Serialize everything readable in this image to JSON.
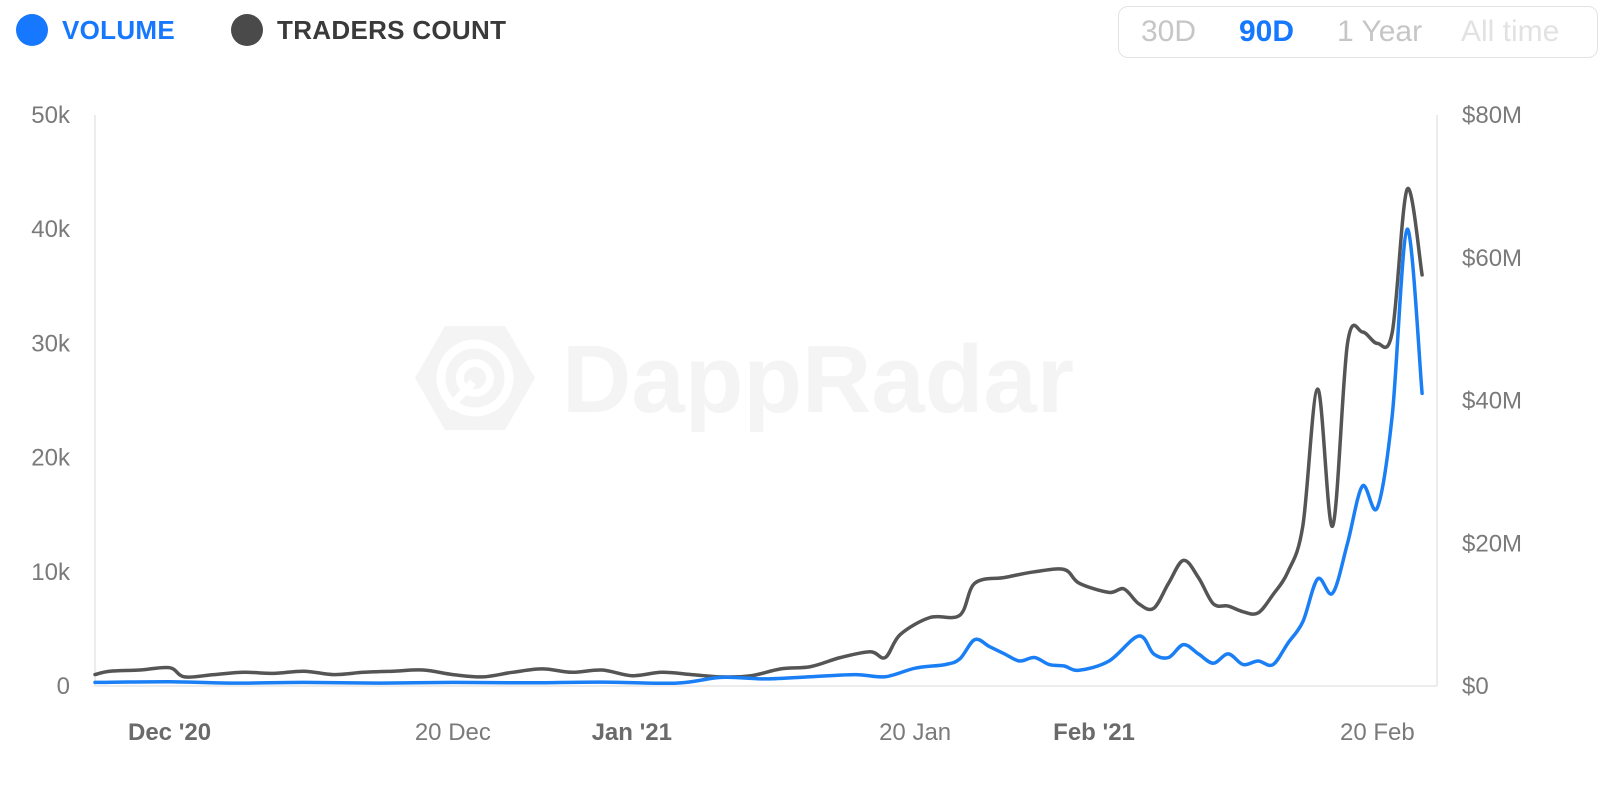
{
  "legend": [
    {
      "label": "VOLUME",
      "color": "#1677ff",
      "text_color": "#1677ff"
    },
    {
      "label": "TRADERS COUNT",
      "color": "#4a4a4a",
      "text_color": "#3a3a3a"
    }
  ],
  "range_selector": {
    "options": [
      "30D",
      "90D",
      "1 Year",
      "All time"
    ],
    "selected": "90D"
  },
  "watermark": "DappRadar",
  "chart_data": {
    "type": "line",
    "x_labels": [
      {
        "label": "Dec '20",
        "bold": true
      },
      {
        "label": "20 Dec",
        "bold": false
      },
      {
        "label": "Jan '21",
        "bold": true
      },
      {
        "label": "20 Jan",
        "bold": false
      },
      {
        "label": "Feb '21",
        "bold": true
      },
      {
        "label": "20 Feb",
        "bold": false
      }
    ],
    "y_left": {
      "ticks": [
        "0",
        "10k",
        "20k",
        "30k",
        "40k",
        "50k"
      ],
      "range": [
        0,
        50000
      ]
    },
    "y_right": {
      "ticks": [
        "$0",
        "$20M",
        "$40M",
        "$60M",
        "$80M"
      ],
      "range": [
        0,
        80000000
      ]
    },
    "x_range": [
      "2020-11-26",
      "2021-02-24"
    ],
    "series": [
      {
        "name": "TRADERS COUNT",
        "axis": "left",
        "color": "#555555",
        "points": [
          [
            "2020-11-26",
            1000
          ],
          [
            "2020-11-27",
            1300
          ],
          [
            "2020-11-29",
            1400
          ],
          [
            "2020-12-01",
            1600
          ],
          [
            "2020-12-02",
            800
          ],
          [
            "2020-12-04",
            1000
          ],
          [
            "2020-12-06",
            1200
          ],
          [
            "2020-12-08",
            1100
          ],
          [
            "2020-12-10",
            1300
          ],
          [
            "2020-12-12",
            1000
          ],
          [
            "2020-12-14",
            1200
          ],
          [
            "2020-12-16",
            1300
          ],
          [
            "2020-12-18",
            1400
          ],
          [
            "2020-12-20",
            1000
          ],
          [
            "2020-12-22",
            800
          ],
          [
            "2020-12-24",
            1200
          ],
          [
            "2020-12-26",
            1500
          ],
          [
            "2020-12-28",
            1200
          ],
          [
            "2020-12-30",
            1400
          ],
          [
            "2021-01-01",
            900
          ],
          [
            "2021-01-03",
            1200
          ],
          [
            "2021-01-05",
            1000
          ],
          [
            "2021-01-07",
            800
          ],
          [
            "2021-01-09",
            900
          ],
          [
            "2021-01-11",
            1500
          ],
          [
            "2021-01-13",
            1700
          ],
          [
            "2021-01-15",
            2500
          ],
          [
            "2021-01-17",
            3000
          ],
          [
            "2021-01-18",
            2500
          ],
          [
            "2021-01-19",
            4500
          ],
          [
            "2021-01-21",
            6000
          ],
          [
            "2021-01-23",
            6200
          ],
          [
            "2021-01-24",
            9000
          ],
          [
            "2021-01-26",
            9500
          ],
          [
            "2021-01-28",
            10000
          ],
          [
            "2021-01-30",
            10200
          ],
          [
            "2021-01-31",
            9000
          ],
          [
            "2021-02-02",
            8200
          ],
          [
            "2021-02-03",
            8500
          ],
          [
            "2021-02-04",
            7200
          ],
          [
            "2021-02-05",
            6800
          ],
          [
            "2021-02-06",
            9000
          ],
          [
            "2021-02-07",
            11000
          ],
          [
            "2021-02-08",
            9500
          ],
          [
            "2021-02-09",
            7200
          ],
          [
            "2021-02-10",
            7000
          ],
          [
            "2021-02-11",
            6500
          ],
          [
            "2021-02-12",
            6400
          ],
          [
            "2021-02-13",
            8000
          ],
          [
            "2021-02-14",
            10000
          ],
          [
            "2021-02-15",
            14000
          ],
          [
            "2021-02-16",
            26000
          ],
          [
            "2021-02-17",
            14000
          ],
          [
            "2021-02-18",
            30000
          ],
          [
            "2021-02-19",
            31000
          ],
          [
            "2021-02-20",
            30000
          ],
          [
            "2021-02-21",
            31000
          ],
          [
            "2021-02-22",
            43500
          ],
          [
            "2021-02-23",
            36000
          ]
        ]
      },
      {
        "name": "VOLUME",
        "axis": "right",
        "color": "#1a7ff5",
        "points": [
          [
            "2020-11-26",
            500000
          ],
          [
            "2020-12-01",
            600000
          ],
          [
            "2020-12-05",
            400000
          ],
          [
            "2020-12-10",
            500000
          ],
          [
            "2020-12-15",
            400000
          ],
          [
            "2020-12-20",
            500000
          ],
          [
            "2020-12-25",
            450000
          ],
          [
            "2020-12-30",
            550000
          ],
          [
            "2021-01-04",
            400000
          ],
          [
            "2021-01-07",
            1200000
          ],
          [
            "2021-01-10",
            1000000
          ],
          [
            "2021-01-13",
            1300000
          ],
          [
            "2021-01-16",
            1600000
          ],
          [
            "2021-01-18",
            1300000
          ],
          [
            "2021-01-20",
            2500000
          ],
          [
            "2021-01-22",
            3000000
          ],
          [
            "2021-01-23",
            3800000
          ],
          [
            "2021-01-24",
            6500000
          ],
          [
            "2021-01-25",
            5500000
          ],
          [
            "2021-01-26",
            4500000
          ],
          [
            "2021-01-27",
            3500000
          ],
          [
            "2021-01-28",
            4000000
          ],
          [
            "2021-01-29",
            3000000
          ],
          [
            "2021-01-30",
            2800000
          ],
          [
            "2021-01-31",
            2200000
          ],
          [
            "2021-02-02",
            3500000
          ],
          [
            "2021-02-04",
            7000000
          ],
          [
            "2021-02-05",
            4500000
          ],
          [
            "2021-02-06",
            4000000
          ],
          [
            "2021-02-07",
            5800000
          ],
          [
            "2021-02-08",
            4500000
          ],
          [
            "2021-02-09",
            3200000
          ],
          [
            "2021-02-10",
            4500000
          ],
          [
            "2021-02-11",
            3000000
          ],
          [
            "2021-02-12",
            3500000
          ],
          [
            "2021-02-13",
            3000000
          ],
          [
            "2021-02-14",
            6000000
          ],
          [
            "2021-02-15",
            9000000
          ],
          [
            "2021-02-16",
            15000000
          ],
          [
            "2021-02-17",
            13000000
          ],
          [
            "2021-02-18",
            20000000
          ],
          [
            "2021-02-19",
            28000000
          ],
          [
            "2021-02-20",
            25000000
          ],
          [
            "2021-02-21",
            38000000
          ],
          [
            "2021-02-22",
            64000000
          ],
          [
            "2021-02-23",
            41000000
          ]
        ]
      }
    ]
  }
}
